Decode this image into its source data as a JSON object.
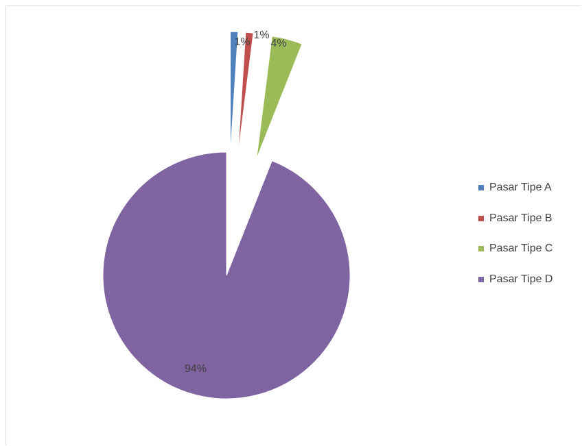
{
  "chart_data": {
    "type": "pie",
    "exploded": true,
    "title": "",
    "categories": [
      "Pasar Tipe A",
      "Pasar Tipe B",
      "Pasar Tipe C",
      "Pasar Tipe D"
    ],
    "values": [
      1,
      1,
      4,
      94
    ],
    "data_labels": [
      "1%",
      "1%",
      "4%",
      "94%"
    ],
    "colors": [
      "#4f81bd",
      "#c0504d",
      "#9bbb59",
      "#8064a2"
    ],
    "legend": {
      "position": "right"
    }
  }
}
